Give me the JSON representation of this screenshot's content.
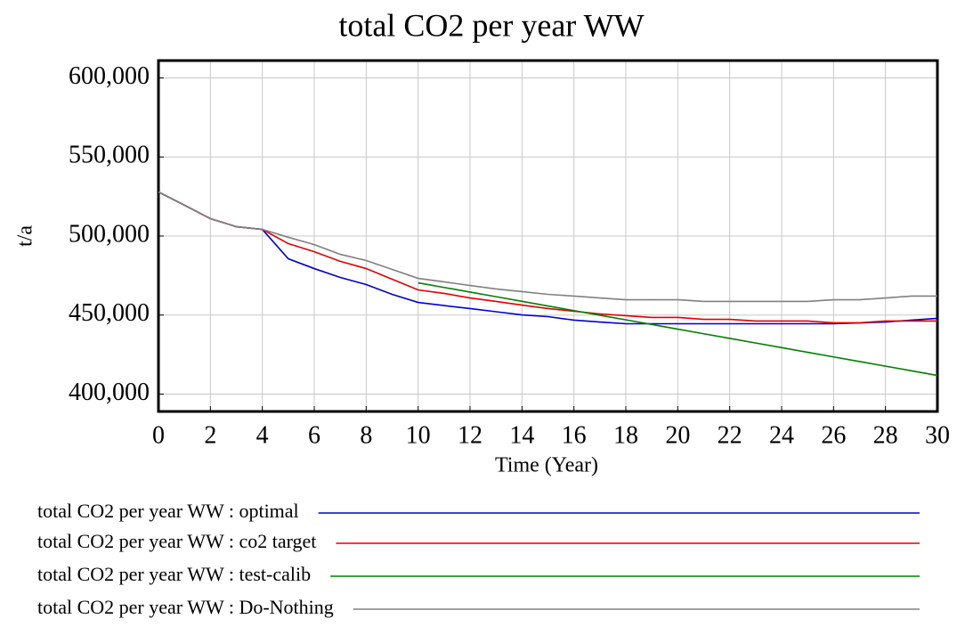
{
  "chart_data": {
    "type": "line",
    "title": "total CO2 per year WW",
    "xlabel": "Time (Year)",
    "ylabel": "t/a",
    "x": [
      0,
      1,
      2,
      3,
      4,
      5,
      6,
      7,
      8,
      9,
      10,
      11,
      12,
      13,
      14,
      15,
      16,
      17,
      18,
      19,
      20,
      21,
      22,
      23,
      24,
      25,
      26,
      27,
      28,
      29,
      30
    ],
    "xlim": [
      0,
      30
    ],
    "xticks": [
      0,
      2,
      4,
      6,
      8,
      10,
      12,
      14,
      16,
      18,
      20,
      22,
      24,
      26,
      28,
      30
    ],
    "ylim": [
      389000,
      611000
    ],
    "yticks": [
      {
        "value": 600000,
        "label": "600,000"
      },
      {
        "value": 550000,
        "label": "550,000"
      },
      {
        "value": 500000,
        "label": "500,000"
      },
      {
        "value": 450000,
        "label": "450,000"
      },
      {
        "value": 400000,
        "label": "400,000"
      }
    ],
    "grid": true,
    "legend": "bottom",
    "series": [
      {
        "name": "total CO2 per year WW : optimal",
        "color": "#0000cc",
        "values": [
          527900,
          519500,
          511000,
          505900,
          504200,
          485600,
          479400,
          473800,
          469300,
          463100,
          458000,
          456000,
          454100,
          452100,
          450100,
          449000,
          446800,
          445600,
          444500,
          444500,
          444500,
          444500,
          444500,
          444500,
          444500,
          444500,
          444500,
          445000,
          445600,
          446800,
          447900
        ]
      },
      {
        "name": "total CO2 per year WW : co2 target",
        "color": "#e00000",
        "values": [
          527900,
          519500,
          511000,
          505900,
          504200,
          495200,
          490100,
          484000,
          479400,
          472700,
          465900,
          463700,
          460800,
          458600,
          456300,
          454100,
          452400,
          450700,
          449600,
          448500,
          448500,
          447300,
          447300,
          446200,
          446200,
          446200,
          445100,
          445100,
          446200,
          446200,
          446200
        ]
      },
      {
        "name": "total CO2 per year WW : test-calib",
        "color": "#008000",
        "values": [
          null,
          null,
          null,
          null,
          null,
          null,
          null,
          null,
          null,
          null,
          470400,
          467470,
          464540,
          461610,
          458680,
          455750,
          452820,
          449890,
          446960,
          444030,
          441100,
          438170,
          435240,
          432310,
          429380,
          426450,
          423520,
          420590,
          417660,
          414730,
          411800
        ]
      },
      {
        "name": "total CO2 per year WW : Do-Nothing",
        "color": "#808080",
        "values": [
          527900,
          519500,
          511000,
          505900,
          504200,
          499200,
          494600,
          488400,
          484500,
          478900,
          473200,
          471000,
          468700,
          466500,
          464800,
          463100,
          462000,
          460800,
          459700,
          459700,
          459700,
          458600,
          458600,
          458600,
          458600,
          458600,
          459700,
          459700,
          460800,
          462000,
          462000
        ]
      }
    ]
  }
}
